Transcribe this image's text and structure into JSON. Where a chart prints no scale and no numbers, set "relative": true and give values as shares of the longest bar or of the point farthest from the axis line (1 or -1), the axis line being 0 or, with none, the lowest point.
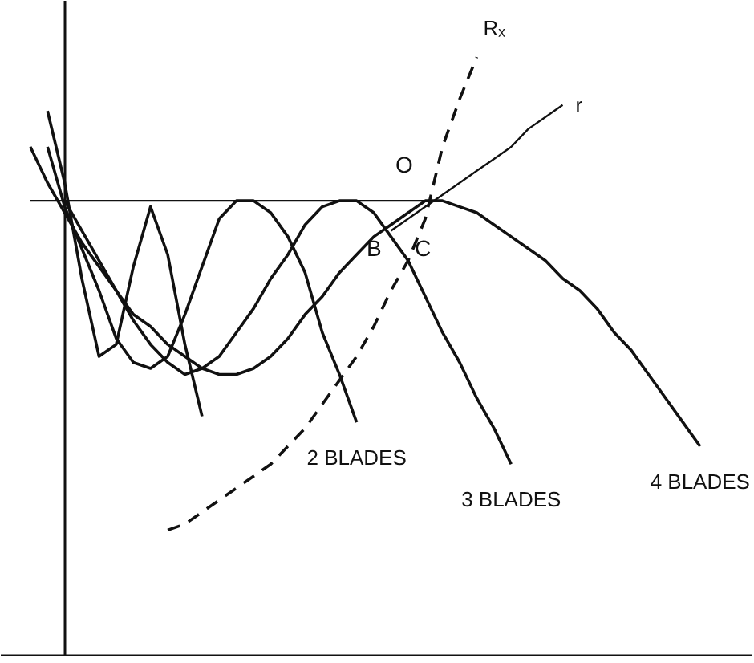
{
  "chart_data": {
    "type": "line",
    "relative": true,
    "grid": false,
    "marker": "none",
    "categories": [
      null,
      null,
      null,
      null,
      null,
      null,
      null,
      null,
      null,
      null,
      null,
      null,
      null,
      null,
      null,
      null,
      null,
      null,
      null,
      null,
      null,
      null,
      null,
      null,
      null,
      null,
      null,
      null,
      null,
      null,
      null,
      null,
      null,
      null,
      null,
      null,
      null,
      null,
      null,
      null,
      null,
      null
    ],
    "series": [
      {
        "color": "#111111",
        "values": [
          null,
          null,
          0.91,
          0.79,
          0.63,
          0.5,
          0.52,
          0.65,
          0.75,
          0.67,
          0.52,
          0.4,
          null,
          null,
          null,
          null,
          null,
          null,
          null,
          null,
          null,
          null,
          null,
          null,
          null,
          null,
          null,
          null,
          null,
          null,
          null,
          null,
          null,
          null,
          null,
          null,
          null,
          null,
          null,
          null,
          null,
          null
        ]
      },
      {
        "name": "2 BLADES",
        "color": "#111111",
        "values": [
          null,
          null,
          0.85,
          0.75,
          0.68,
          0.61,
          0.53,
          0.49,
          0.48,
          0.5,
          0.57,
          0.65,
          0.73,
          0.76,
          0.76,
          0.74,
          0.7,
          0.64,
          0.54,
          0.47,
          0.39,
          null,
          null,
          null,
          null,
          null,
          null,
          null,
          null,
          null,
          null,
          null,
          null,
          null,
          null,
          null,
          null,
          null,
          null,
          null,
          null,
          null
        ]
      },
      {
        "name": "3 BLADES",
        "color": "#111111",
        "values": [
          null,
          0.85,
          0.79,
          0.74,
          0.69,
          0.65,
          0.61,
          0.56,
          0.52,
          0.49,
          0.47,
          0.48,
          0.5,
          0.54,
          0.58,
          0.63,
          0.67,
          0.72,
          0.75,
          0.76,
          0.76,
          0.74,
          0.7,
          0.66,
          0.6,
          0.54,
          0.49,
          0.43,
          0.38,
          0.32,
          null,
          null,
          null,
          null,
          null,
          null,
          null,
          null,
          null,
          null,
          null,
          null
        ]
      },
      {
        "name": "4 BLADES",
        "color": "#111111",
        "values": [
          null,
          null,
          null,
          0.76,
          0.71,
          0.66,
          0.61,
          0.57,
          0.55,
          0.52,
          0.5,
          0.48,
          0.47,
          0.47,
          0.48,
          0.5,
          0.53,
          0.57,
          0.6,
          0.64,
          0.67,
          0.7,
          0.72,
          0.74,
          0.76,
          0.76,
          0.75,
          0.74,
          0.72,
          0.7,
          0.68,
          0.66,
          0.63,
          0.61,
          0.58,
          0.54,
          0.51,
          0.47,
          0.43,
          0.39,
          0.35,
          null
        ]
      },
      {
        "name": "Rₓ",
        "color": "#111111",
        "line_style": "dashed",
        "values": [
          null,
          null,
          null,
          null,
          null,
          null,
          null,
          null,
          null,
          0.21,
          0.22,
          0.24,
          0.26,
          0.28,
          0.3,
          0.32,
          0.35,
          0.38,
          0.42,
          0.46,
          0.5,
          0.55,
          0.61,
          0.66,
          0.73,
          0.85,
          0.93,
          1.0,
          null,
          null,
          null,
          null,
          null,
          null,
          null,
          null,
          null,
          null,
          null,
          null,
          null,
          null
        ]
      },
      {
        "name": "r",
        "color": "#111111",
        "values": [
          null,
          null,
          null,
          null,
          null,
          null,
          null,
          null,
          null,
          null,
          null,
          null,
          null,
          null,
          null,
          null,
          null,
          null,
          null,
          null,
          null,
          null,
          0.71,
          0.73,
          0.75,
          0.77,
          0.79,
          0.81,
          0.83,
          0.85,
          0.88,
          0.9,
          0.92,
          null,
          null,
          null,
          null,
          null,
          null,
          null,
          null,
          null
        ]
      },
      {
        "color": "#111111",
        "values": [
          null,
          0.76,
          0.76,
          0.76,
          0.76,
          0.76,
          0.76,
          0.76,
          0.76,
          0.76,
          0.76,
          0.76,
          0.76,
          0.76,
          0.76,
          0.76,
          0.76,
          0.76,
          0.76,
          0.76,
          0.76,
          0.76,
          0.76,
          0.76,
          0.76,
          null,
          null,
          null,
          null,
          null,
          null,
          null,
          null,
          null,
          null,
          null,
          null,
          null,
          null,
          null,
          null,
          null
        ]
      }
    ],
    "annotations": [
      "O",
      "B",
      "C"
    ]
  }
}
